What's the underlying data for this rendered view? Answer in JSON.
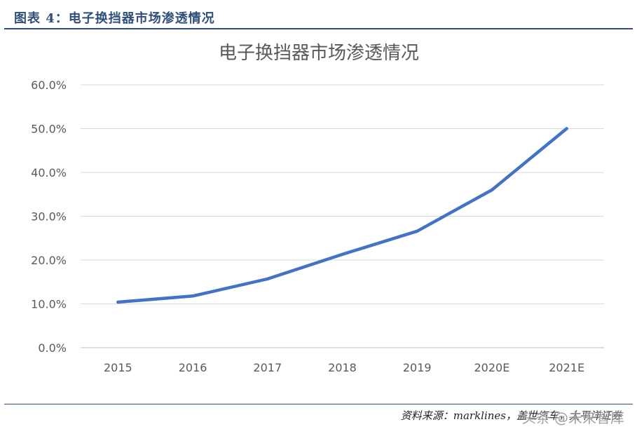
{
  "header": {
    "figure_label": "图表 4：电子换挡器市场渗透情况"
  },
  "chart_data": {
    "type": "line",
    "title": "电子换挡器市场渗透情况",
    "xlabel": "",
    "ylabel": "",
    "categories": [
      "2015",
      "2016",
      "2017",
      "2018",
      "2019",
      "2020E",
      "2021E"
    ],
    "series": [
      {
        "values": [
          10.4,
          11.8,
          15.7,
          21.3,
          26.6,
          36.0,
          50.0
        ],
        "color": "#4472c4"
      }
    ],
    "ylim": [
      0,
      60
    ],
    "yticks": [
      "0.0%",
      "10.0%",
      "20.0%",
      "30.0%",
      "40.0%",
      "50.0%",
      "60.0%"
    ],
    "grid": true,
    "legend": "none"
  },
  "footer": {
    "source": "资料来源：marklines，盖世汽车，太平洋证券",
    "watermark": "头条 @未来智库"
  }
}
